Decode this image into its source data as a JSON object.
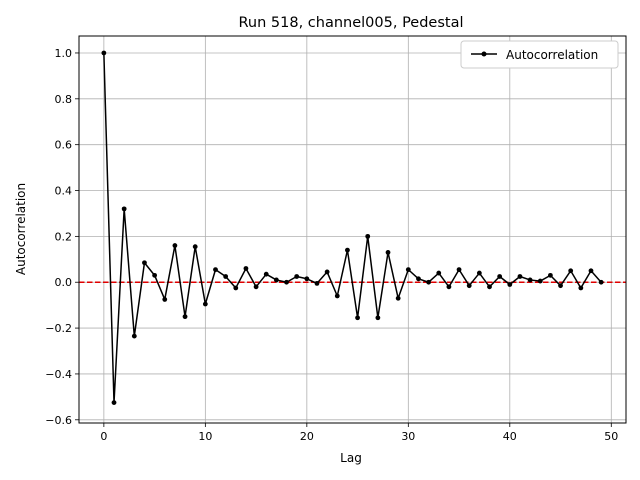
{
  "chart_data": {
    "type": "line",
    "title": "Run 518, channel005, Pedestal",
    "xlabel": "Lag",
    "ylabel": "Autocorrelation",
    "xlim": [
      -2.45,
      51.45
    ],
    "ylim": [
      -0.614,
      1.074
    ],
    "xticks": [
      0,
      10,
      20,
      30,
      40,
      50
    ],
    "xtick_labels": [
      "0",
      "10",
      "20",
      "30",
      "40",
      "50"
    ],
    "yticks": [
      -0.6,
      -0.4,
      -0.2,
      0.0,
      0.2,
      0.4,
      0.6,
      0.8,
      1.0
    ],
    "ytick_labels": [
      "−0.6",
      "−0.4",
      "−0.2",
      "0.0",
      "0.2",
      "0.4",
      "0.6",
      "0.8",
      "1.0"
    ],
    "grid": true,
    "legend_position": "top-right",
    "reference_line": {
      "y": 0,
      "color": "#e00000",
      "style": "dashed"
    },
    "series": [
      {
        "name": "Autocorrelation",
        "color": "#000000",
        "marker": "dot",
        "x": [
          0,
          1,
          2,
          3,
          4,
          5,
          6,
          7,
          8,
          9,
          10,
          11,
          12,
          13,
          14,
          15,
          16,
          17,
          18,
          19,
          20,
          21,
          22,
          23,
          24,
          25,
          26,
          27,
          28,
          29,
          30,
          31,
          32,
          33,
          34,
          35,
          36,
          37,
          38,
          39,
          40,
          41,
          42,
          43,
          44,
          45,
          46,
          47,
          48,
          49
        ],
        "values": [
          1.0,
          -0.525,
          0.32,
          -0.235,
          0.085,
          0.03,
          -0.075,
          0.16,
          -0.15,
          0.155,
          -0.095,
          0.055,
          0.025,
          -0.025,
          0.06,
          -0.02,
          0.035,
          0.01,
          0.0,
          0.025,
          0.015,
          -0.005,
          0.045,
          -0.06,
          0.14,
          -0.155,
          0.2,
          -0.155,
          0.13,
          -0.07,
          0.055,
          0.015,
          0.0,
          0.04,
          -0.02,
          0.055,
          -0.015,
          0.04,
          -0.02,
          0.025,
          -0.01,
          0.025,
          0.01,
          0.005,
          0.03,
          -0.015,
          0.05,
          -0.025,
          0.05,
          0.0
        ]
      }
    ]
  }
}
